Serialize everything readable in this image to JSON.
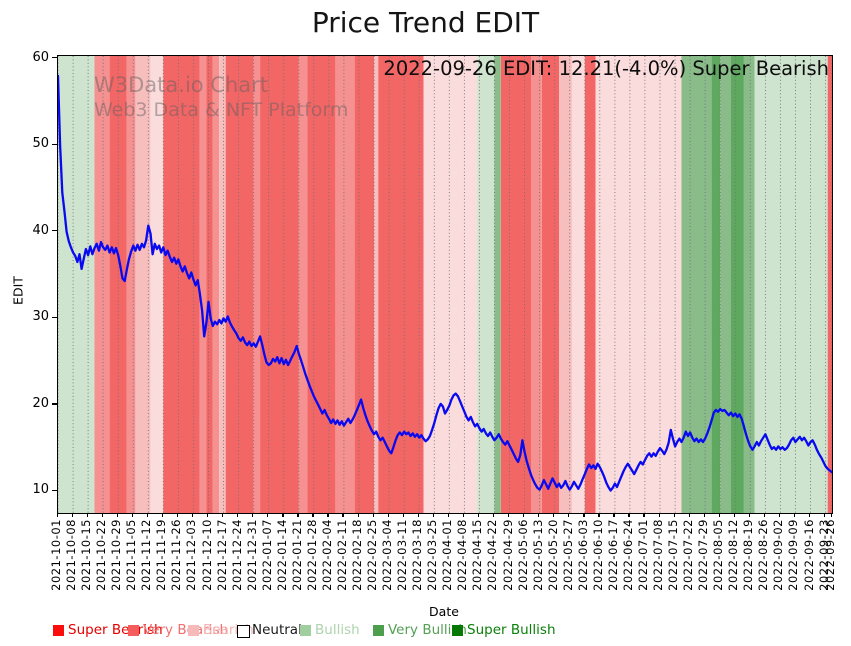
{
  "title": "Price Trend EDIT",
  "annotation": "2022-09-26 EDIT: 12.21(-4.0%) Super Bearish",
  "watermark": {
    "line1": "W3Data.io Chart",
    "line2": "Web3 Data & NFT Platform"
  },
  "chart_data": {
    "type": "line",
    "title": "Price Trend EDIT",
    "xlabel": "Date",
    "ylabel": "EDIT",
    "ylim": [
      7.5,
      60.3
    ],
    "grid": "vertical-dotted-weekly",
    "x_start_date": "2021-10-01",
    "x_end_date": "2022-09-26",
    "x_total_days": 360,
    "y_ticks": [
      10,
      20,
      30,
      40,
      50,
      60
    ],
    "x_tick_days": [
      0,
      7,
      14,
      21,
      28,
      35,
      42,
      49,
      56,
      63,
      70,
      77,
      84,
      91,
      98,
      105,
      112,
      119,
      126,
      133,
      140,
      147,
      154,
      161,
      168,
      175,
      182,
      189,
      196,
      203,
      210,
      217,
      224,
      231,
      238,
      245,
      252,
      259,
      266,
      273,
      280,
      287,
      294,
      301,
      308,
      315,
      322,
      329,
      336,
      343,
      350,
      357,
      360
    ],
    "x_tick_labels": [
      "2021-10-01",
      "2021-10-08",
      "2021-10-15",
      "2021-10-22",
      "2021-10-29",
      "2021-11-05",
      "2021-11-12",
      "2021-11-19",
      "2021-11-26",
      "2021-12-03",
      "2021-12-10",
      "2021-12-17",
      "2021-12-24",
      "2021-12-31",
      "2022-01-07",
      "2022-01-14",
      "2022-01-21",
      "2022-01-28",
      "2022-02-04",
      "2022-02-11",
      "2022-02-18",
      "2022-02-25",
      "2022-03-04",
      "2022-03-11",
      "2022-03-18",
      "2022-03-25",
      "2022-04-01",
      "2022-04-08",
      "2022-04-15",
      "2022-04-22",
      "2022-04-29",
      "2022-05-06",
      "2022-05-13",
      "2022-05-20",
      "2022-05-27",
      "2022-06-03",
      "2022-06-10",
      "2022-06-17",
      "2022-06-24",
      "2022-07-01",
      "2022-07-08",
      "2022-07-15",
      "2022-07-22",
      "2022-07-29",
      "2022-08-05",
      "2022-08-12",
      "2022-08-19",
      "2022-08-26",
      "2022-09-02",
      "2022-09-09",
      "2022-09-16",
      "2022-09-23",
      "2022-09-26"
    ],
    "series": [
      {
        "name": "EDIT",
        "color": "#0a0af0",
        "start_date": "2021-10-01",
        "interval_days": 1,
        "values": [
          58.0,
          50.0,
          44.5,
          42.3,
          40.0,
          38.9,
          38.2,
          37.6,
          37.2,
          36.5,
          37.4,
          35.7,
          36.9,
          38.0,
          37.3,
          38.3,
          37.4,
          38.1,
          38.6,
          37.8,
          38.8,
          38.2,
          37.9,
          38.4,
          37.6,
          38.2,
          37.5,
          38.1,
          37.3,
          36.0,
          34.6,
          34.3,
          35.6,
          36.8,
          37.7,
          38.4,
          37.8,
          38.5,
          37.9,
          38.6,
          38.2,
          39.0,
          40.7,
          39.8,
          37.4,
          38.6,
          38.0,
          38.4,
          37.6,
          38.2,
          37.3,
          37.8,
          37.1,
          36.5,
          37.0,
          36.3,
          36.8,
          36.0,
          35.4,
          36.0,
          35.2,
          34.6,
          35.3,
          34.5,
          33.8,
          34.4,
          32.8,
          30.9,
          27.9,
          29.5,
          31.9,
          30.0,
          29.1,
          29.6,
          29.3,
          29.8,
          29.4,
          30.0,
          29.6,
          30.2,
          29.5,
          29.0,
          28.6,
          28.2,
          27.7,
          27.4,
          27.8,
          27.2,
          26.9,
          27.3,
          26.8,
          27.1,
          26.7,
          27.3,
          27.9,
          26.9,
          25.8,
          24.9,
          24.6,
          24.8,
          25.3,
          25.0,
          25.5,
          24.8,
          25.4,
          24.7,
          25.2,
          24.6,
          25.1,
          25.6,
          26.1,
          26.8,
          25.9,
          25.2,
          24.4,
          23.6,
          22.9,
          22.2,
          21.6,
          21.0,
          20.5,
          20.0,
          19.5,
          19.0,
          19.4,
          18.8,
          18.4,
          17.9,
          18.3,
          17.8,
          18.2,
          17.7,
          18.1,
          17.6,
          18.0,
          18.4,
          17.9,
          18.3,
          18.8,
          19.4,
          20.0,
          20.6,
          19.6,
          18.8,
          18.1,
          17.5,
          17.0,
          16.6,
          16.9,
          16.3,
          15.9,
          16.2,
          15.7,
          15.2,
          14.7,
          14.4,
          15.1,
          15.9,
          16.5,
          16.8,
          16.5,
          16.9,
          16.6,
          16.8,
          16.4,
          16.7,
          16.3,
          16.6,
          16.2,
          16.5,
          16.1,
          15.8,
          16.0,
          16.4,
          17.1,
          17.9,
          18.8,
          19.6,
          20.1,
          19.8,
          19.0,
          19.4,
          19.9,
          20.6,
          21.1,
          21.3,
          21.0,
          20.4,
          19.8,
          19.2,
          18.6,
          18.2,
          18.6,
          18.0,
          17.5,
          17.8,
          17.3,
          16.9,
          17.2,
          16.7,
          16.4,
          16.8,
          16.3,
          15.9,
          16.2,
          16.6,
          16.1,
          15.7,
          15.4,
          15.8,
          15.3,
          14.8,
          14.3,
          13.8,
          13.4,
          14.2,
          15.9,
          14.6,
          13.5,
          12.7,
          11.9,
          11.3,
          10.8,
          10.4,
          10.2,
          10.7,
          11.3,
          10.8,
          10.3,
          10.9,
          11.5,
          11.0,
          10.5,
          10.9,
          10.4,
          10.7,
          11.2,
          10.6,
          10.2,
          10.6,
          11.1,
          10.7,
          10.3,
          10.8,
          11.4,
          12.0,
          12.6,
          13.1,
          12.7,
          13.0,
          12.6,
          13.2,
          12.8,
          12.3,
          11.7,
          11.0,
          10.5,
          10.1,
          10.4,
          10.9,
          10.5,
          11.1,
          11.7,
          12.3,
          12.8,
          13.2,
          12.8,
          12.4,
          12.0,
          12.5,
          13.0,
          13.4,
          13.1,
          13.6,
          14.1,
          14.4,
          14.0,
          14.4,
          14.1,
          14.6,
          15.0,
          14.7,
          14.3,
          14.8,
          15.6,
          17.1,
          16.1,
          15.2,
          15.7,
          16.1,
          15.7,
          16.2,
          16.9,
          16.4,
          16.8,
          16.2,
          15.8,
          16.1,
          15.7,
          16.0,
          15.7,
          16.1,
          16.7,
          17.4,
          18.2,
          19.1,
          19.4,
          19.2,
          19.5,
          19.3,
          19.4,
          19.1,
          18.8,
          19.1,
          18.7,
          19.0,
          18.6,
          18.9,
          18.4,
          17.5,
          16.6,
          15.8,
          15.2,
          14.8,
          15.2,
          15.7,
          15.3,
          15.8,
          16.2,
          16.6,
          16.0,
          15.4,
          14.9,
          15.1,
          14.8,
          15.2,
          14.9,
          15.1,
          14.8,
          15.0,
          15.4,
          15.9,
          16.2,
          15.7,
          16.0,
          16.3,
          15.9,
          16.2,
          15.8,
          15.3,
          15.7,
          15.9,
          15.4,
          14.8,
          14.3,
          13.9,
          13.4,
          12.9,
          12.6,
          12.4,
          12.21
        ]
      }
    ],
    "band_colors": {
      "super_bearish": "#f36666",
      "very_bearish": "#f59191",
      "bearish": "#f7bebe",
      "bearish_light": "#fbdcdc",
      "neutral": "#ffffff",
      "bullish": "#cfe4cf",
      "very_bullish": "#8abc8a",
      "super_bullish": "#5fa85f"
    },
    "sentiment_bands": [
      {
        "from_day": 0,
        "to_day": 17,
        "level": "bullish"
      },
      {
        "from_day": 17,
        "to_day": 24,
        "level": "very_bearish"
      },
      {
        "from_day": 24,
        "to_day": 32,
        "level": "super_bearish"
      },
      {
        "from_day": 32,
        "to_day": 36,
        "level": "very_bearish"
      },
      {
        "from_day": 36,
        "to_day": 43,
        "level": "bearish"
      },
      {
        "from_day": 43,
        "to_day": 49,
        "level": "bearish_light"
      },
      {
        "from_day": 49,
        "to_day": 66,
        "level": "super_bearish"
      },
      {
        "from_day": 66,
        "to_day": 69,
        "level": "very_bearish"
      },
      {
        "from_day": 69,
        "to_day": 72,
        "level": "super_bearish"
      },
      {
        "from_day": 72,
        "to_day": 75,
        "level": "very_bearish"
      },
      {
        "from_day": 75,
        "to_day": 78,
        "level": "bearish"
      },
      {
        "from_day": 78,
        "to_day": 91,
        "level": "super_bearish"
      },
      {
        "from_day": 91,
        "to_day": 94,
        "level": "very_bearish"
      },
      {
        "from_day": 94,
        "to_day": 112,
        "level": "super_bearish"
      },
      {
        "from_day": 112,
        "to_day": 116,
        "level": "very_bearish"
      },
      {
        "from_day": 116,
        "to_day": 129,
        "level": "super_bearish"
      },
      {
        "from_day": 129,
        "to_day": 138,
        "level": "very_bearish"
      },
      {
        "from_day": 138,
        "to_day": 147,
        "level": "super_bearish"
      },
      {
        "from_day": 147,
        "to_day": 149,
        "level": "bearish"
      },
      {
        "from_day": 149,
        "to_day": 170,
        "level": "super_bearish"
      },
      {
        "from_day": 170,
        "to_day": 195,
        "level": "bearish_light"
      },
      {
        "from_day": 195,
        "to_day": 203,
        "level": "bullish"
      },
      {
        "from_day": 203,
        "to_day": 206,
        "level": "very_bullish"
      },
      {
        "from_day": 206,
        "to_day": 220,
        "level": "super_bearish"
      },
      {
        "from_day": 220,
        "to_day": 225,
        "level": "very_bearish"
      },
      {
        "from_day": 225,
        "to_day": 233,
        "level": "super_bearish"
      },
      {
        "from_day": 233,
        "to_day": 239,
        "level": "bearish"
      },
      {
        "from_day": 239,
        "to_day": 245,
        "level": "bearish_light"
      },
      {
        "from_day": 245,
        "to_day": 250,
        "level": "super_bearish"
      },
      {
        "from_day": 250,
        "to_day": 290,
        "level": "bearish_light"
      },
      {
        "from_day": 290,
        "to_day": 304,
        "level": "very_bullish"
      },
      {
        "from_day": 304,
        "to_day": 308,
        "level": "super_bullish"
      },
      {
        "from_day": 308,
        "to_day": 313,
        "level": "very_bullish"
      },
      {
        "from_day": 313,
        "to_day": 319,
        "level": "super_bullish"
      },
      {
        "from_day": 319,
        "to_day": 324,
        "level": "very_bullish"
      },
      {
        "from_day": 324,
        "to_day": 358,
        "level": "bullish"
      },
      {
        "from_day": 358,
        "to_day": 360,
        "level": "super_bearish"
      }
    ],
    "legend_position": "bottom"
  },
  "legend": {
    "items": [
      {
        "label": "Super Bearish",
        "swatch_color": "#fb0d0d",
        "text_color": "#e60000",
        "border": false
      },
      {
        "label": "Very Bearish",
        "swatch_color": "#f55c5c",
        "text_color": "#f26d6d",
        "border": false
      },
      {
        "label": "Bearish",
        "swatch_color": "#f7baba",
        "text_color": "#f4b6b6",
        "border": false
      },
      {
        "label": "Neutral",
        "swatch_color": "#ffffff",
        "text_color": "#1a1a1a",
        "border": true
      },
      {
        "label": "Bullish",
        "swatch_color": "#9fcf9f",
        "text_color": "#aed3ae",
        "border": false
      },
      {
        "label": "Very Bullish",
        "swatch_color": "#4d9e4d",
        "text_color": "#55a055",
        "border": false
      },
      {
        "label": "Super Bullish",
        "swatch_color": "#067806",
        "text_color": "#0a800a",
        "border": false
      }
    ]
  }
}
